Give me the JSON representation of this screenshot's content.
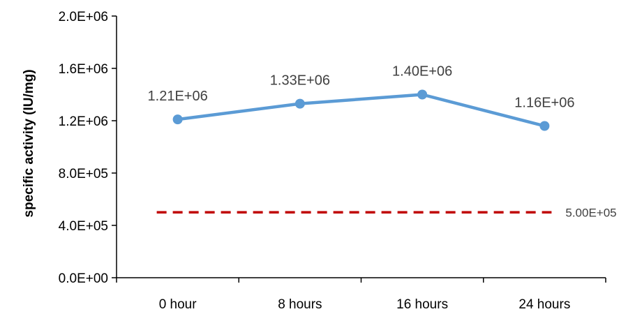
{
  "chart_data": {
    "type": "line",
    "title": "",
    "xlabel": "",
    "ylabel": "specific activity (IU/mg)",
    "categories": [
      "0 hour",
      "8 hours",
      "16 hours",
      "24 hours"
    ],
    "ylim": [
      0,
      2000000
    ],
    "yticks": [
      0,
      400000,
      800000,
      1200000,
      1600000,
      2000000
    ],
    "ytick_labels": [
      "0.0E+00",
      "4.0E+05",
      "8.0E+05",
      "1.2E+06",
      "1.6E+06",
      "2.0E+06"
    ],
    "grid": false,
    "legend": "none",
    "series": [
      {
        "values": [
          1210000,
          1330000,
          1400000,
          1160000
        ],
        "data_labels": [
          "1.21E+06",
          "1.33E+06",
          "1.40E+06",
          "1.16E+06"
        ],
        "color": "#5b9bd5",
        "marker": "circle"
      }
    ],
    "reference_lines": [
      {
        "value": 500000,
        "label": "5.00E+05",
        "color": "#c00000",
        "style": "dashed"
      }
    ],
    "axis_color": "#000000"
  }
}
